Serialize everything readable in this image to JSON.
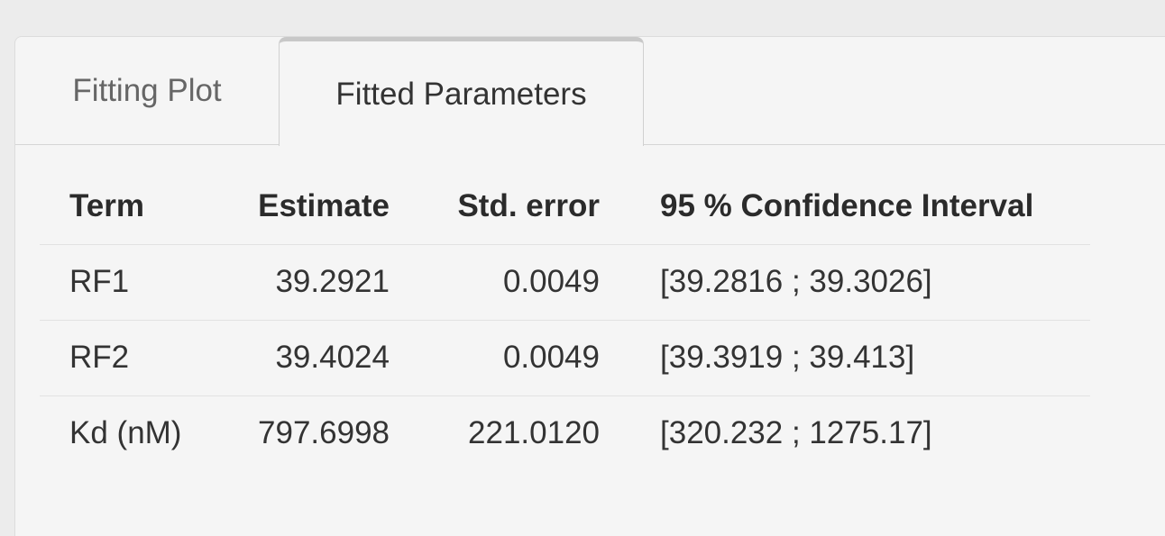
{
  "tabs": [
    {
      "label": "Fitting Plot",
      "active": false
    },
    {
      "label": "Fitted Parameters",
      "active": true
    }
  ],
  "table": {
    "headers": [
      "Term",
      "Estimate",
      "Std. error",
      "95 % Confidence Interval"
    ],
    "rows": [
      [
        "RF1",
        "39.2921",
        "0.0049",
        "[39.2816 ; 39.3026]"
      ],
      [
        "RF2",
        "39.4024",
        "0.0049",
        "[39.3919 ; 39.413]"
      ],
      [
        "Kd (nM)",
        "797.6998",
        "221.0120",
        "[320.232 ; 1275.17]"
      ]
    ]
  }
}
